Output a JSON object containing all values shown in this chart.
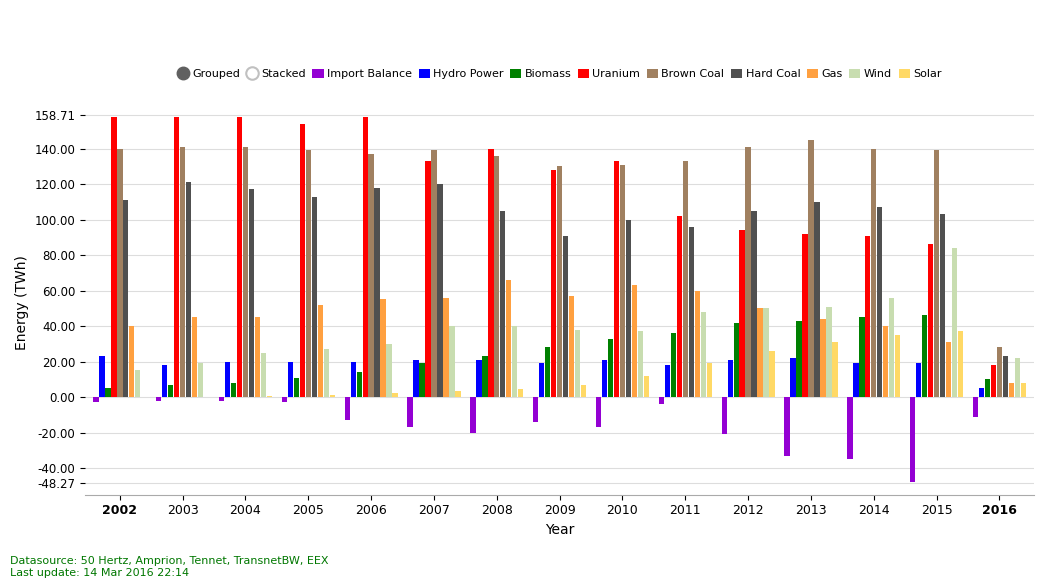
{
  "years": [
    2002,
    2003,
    2004,
    2005,
    2006,
    2007,
    2008,
    2009,
    2010,
    2011,
    2012,
    2013,
    2014,
    2015,
    2016
  ],
  "series": {
    "Import Balance": {
      "color": "#9400D3",
      "values": [
        -3,
        -2,
        -2,
        -3,
        -13,
        -17,
        -20,
        -14,
        -17,
        -4,
        -21,
        -33,
        -35,
        -48,
        -11
      ]
    },
    "Hydro Power": {
      "color": "#0000FF",
      "values": [
        23,
        18,
        20,
        20,
        20,
        21,
        21,
        19,
        21,
        18,
        21,
        22,
        19,
        19,
        5
      ]
    },
    "Biomass": {
      "color": "#008000",
      "values": [
        5,
        7,
        8,
        11,
        14,
        19,
        23,
        28,
        33,
        36,
        42,
        43,
        45,
        46,
        10
      ]
    },
    "Uranium": {
      "color": "#FF0000",
      "values": [
        158,
        158,
        158,
        154,
        158,
        133,
        140,
        128,
        133,
        102,
        94,
        92,
        91,
        86,
        18
      ]
    },
    "Brown Coal": {
      "color": "#A08060",
      "values": [
        140,
        141,
        141,
        139,
        137,
        139,
        136,
        130,
        131,
        133,
        141,
        145,
        140,
        139,
        28
      ]
    },
    "Hard Coal": {
      "color": "#505050",
      "values": [
        111,
        121,
        117,
        113,
        118,
        120,
        105,
        91,
        100,
        96,
        105,
        110,
        107,
        103,
        23
      ]
    },
    "Gas": {
      "color": "#FFA040",
      "values": [
        40,
        45,
        45,
        52,
        55,
        56,
        66,
        57,
        63,
        60,
        50,
        44,
        40,
        31,
        8
      ]
    },
    "Wind": {
      "color": "#C8DDB0",
      "values": [
        15,
        19,
        25,
        27,
        30,
        40,
        40,
        38,
        37,
        48,
        50,
        51,
        56,
        84,
        22
      ]
    },
    "Solar": {
      "color": "#FFD966",
      "values": [
        0.2,
        0.3,
        0.6,
        1.3,
        2.2,
        3.5,
        4.4,
        6.6,
        12,
        19,
        26,
        31,
        35,
        37,
        8
      ]
    }
  },
  "legend_items": [
    "Grouped",
    "Stacked",
    "Import Balance",
    "Hydro Power",
    "Biomass",
    "Uranium",
    "Brown Coal",
    "Hard Coal",
    "Gas",
    "Wind",
    "Solar"
  ],
  "legend_colors": [
    "#606060",
    "#C0C0C0",
    "#9400D3",
    "#0000FF",
    "#008000",
    "#FF0000",
    "#A08060",
    "#505050",
    "#FFA040",
    "#C8DDB0",
    "#FFD966"
  ],
  "xlabel": "Year",
  "ylabel": "Energy (TWh)",
  "yticks": [
    -48.27,
    -40.0,
    -20.0,
    0.0,
    20.0,
    40.0,
    60.0,
    80.0,
    100.0,
    120.0,
    140.0,
    158.71
  ],
  "background_color": "#ffffff",
  "grid_color": "#dddddd",
  "datasource_line1": "Datasource: 50 Hertz, Amprion, Tennet, TransnetBW, EEX",
  "datasource_line2": "Last update: 14 Mar 2016 22:14",
  "series_order": [
    "Import Balance",
    "Hydro Power",
    "Biomass",
    "Uranium",
    "Brown Coal",
    "Hard Coal",
    "Gas",
    "Wind",
    "Solar"
  ]
}
